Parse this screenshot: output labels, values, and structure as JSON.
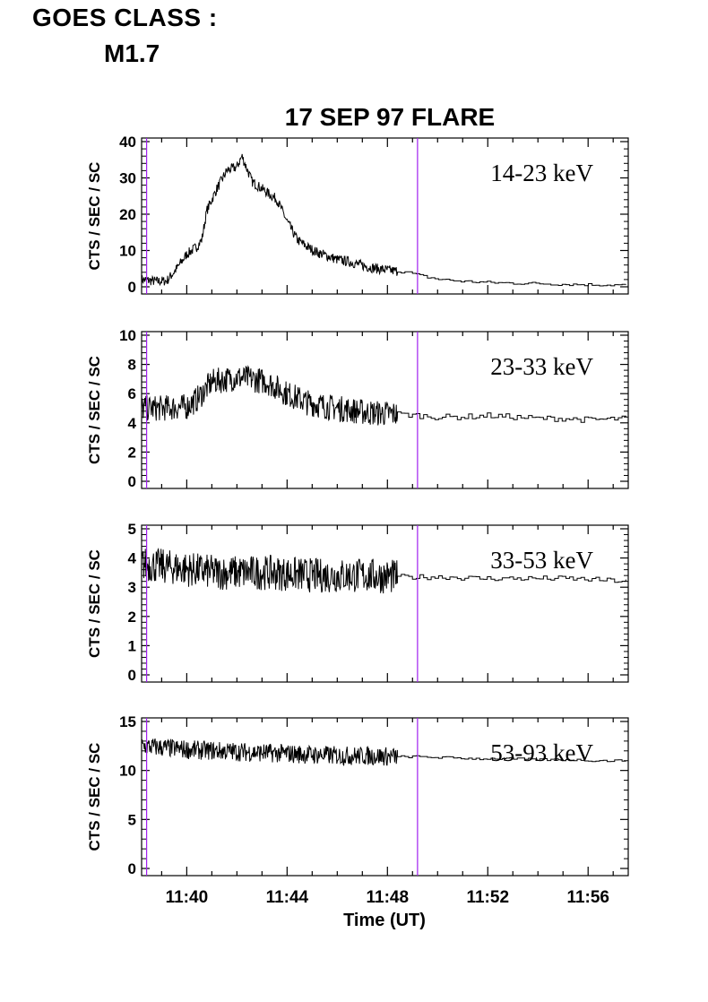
{
  "header": {
    "goes_line1": "GOES CLASS :",
    "goes_line2": "M1.7"
  },
  "colors": {
    "trace": "#000000",
    "marker": "#a020f0",
    "axes": "#000000"
  },
  "chart_data": {
    "type": "line",
    "title": "17 SEP 97 FLARE",
    "xlabel": "Time (UT)",
    "x_unit": "minutes",
    "xlim": [
      "11:38:12",
      "11:57:36"
    ],
    "x_ticks": [
      "11:40",
      "11:44",
      "11:48",
      "11:52",
      "11:56"
    ],
    "markers_x": [
      "11:38:24",
      "11:49:12"
    ],
    "fine_resolution_until": "11:48:24",
    "grid": false,
    "panels": [
      {
        "label": "14-23 keV",
        "ylabel": "CTS / SEC / SC",
        "ylim": [
          0,
          40
        ],
        "yticks": [
          "0",
          "10",
          "20",
          "30",
          "40"
        ],
        "series": [
          {
            "x": [
              "11:38:12",
              "11:38:48",
              "11:39:12",
              "11:39:36",
              "11:40:00",
              "11:40:24",
              "11:40:36",
              "11:40:48",
              "11:41:12",
              "11:41:36",
              "11:42:00",
              "11:42:12",
              "11:42:36",
              "11:43:00",
              "11:43:36",
              "11:44:00",
              "11:44:24",
              "11:44:48",
              "11:45:12",
              "11:45:36",
              "11:46:00",
              "11:46:24",
              "11:46:48",
              "11:47:12",
              "11:47:36",
              "11:48:00",
              "11:48:24",
              "11:48:48",
              "11:49:12",
              "11:50:00",
              "11:51:00",
              "11:52:00",
              "11:53:00",
              "11:54:00",
              "11:55:00",
              "11:56:00",
              "11:57:00",
              "11:57:36"
            ],
            "y": [
              2,
              1.5,
              1.6,
              5,
              9,
              11,
              13,
              21,
              27,
              32,
              33,
              36,
              29,
              27,
              24,
              18,
              13,
              11,
              9.5,
              8.5,
              7.5,
              7,
              6.3,
              5.5,
              5,
              4.6,
              4.3,
              4,
              3.2,
              2.1,
              1.5,
              1.2,
              1,
              0.9,
              0.7,
              0.6,
              0.5,
              0.5
            ]
          }
        ]
      },
      {
        "label": "23-33 keV",
        "ylabel": "CTS / SEC / SC",
        "ylim": [
          0,
          10
        ],
        "yticks": [
          "0",
          "2",
          "4",
          "6",
          "8",
          "10"
        ],
        "series": [
          {
            "x": [
              "11:38:12",
              "11:39:00",
              "11:40:00",
              "11:40:24",
              "11:41:00",
              "11:42:00",
              "11:42:36",
              "11:43:12",
              "11:44:00",
              "11:44:48",
              "11:45:36",
              "11:46:24",
              "11:47:12",
              "11:48:24",
              "11:49:12",
              "11:50:00",
              "11:51:00",
              "11:52:00",
              "11:53:00",
              "11:54:00",
              "11:55:00",
              "11:56:00",
              "11:57:36"
            ],
            "y": [
              5,
              5,
              5.1,
              5.6,
              6.8,
              7.1,
              7,
              6.8,
              6,
              5.4,
              5.1,
              4.9,
              4.7,
              4.6,
              4.5,
              4.4,
              4.4,
              4.5,
              4.4,
              4.3,
              4.3,
              4.2,
              4.3
            ]
          }
        ]
      },
      {
        "label": "33-53 keV",
        "ylabel": "CTS / SEC / SC",
        "ylim": [
          0,
          5
        ],
        "yticks": [
          "0",
          "1",
          "2",
          "3",
          "4",
          "5"
        ],
        "series": [
          {
            "x": [
              "11:38:12",
              "11:39:12",
              "11:40:12",
              "11:41:12",
              "11:42:12",
              "11:43:12",
              "11:44:12",
              "11:45:12",
              "11:46:12",
              "11:47:12",
              "11:48:24",
              "11:49:12",
              "11:50:24",
              "11:51:36",
              "11:52:48",
              "11:54:00",
              "11:55:12",
              "11:56:24",
              "11:57:36"
            ],
            "y": [
              3.8,
              3.7,
              3.6,
              3.5,
              3.5,
              3.5,
              3.45,
              3.4,
              3.4,
              3.4,
              3.35,
              3.35,
              3.35,
              3.3,
              3.3,
              3.3,
              3.3,
              3.25,
              3.2
            ]
          }
        ]
      },
      {
        "label": "53-93 keV",
        "ylabel": "CTS / SEC / SC",
        "ylim": [
          0,
          15
        ],
        "yticks": [
          "0",
          "5",
          "10",
          "15"
        ],
        "series": [
          {
            "x": [
              "11:38:12",
              "11:39:12",
              "11:40:12",
              "11:41:12",
              "11:42:12",
              "11:43:12",
              "11:44:12",
              "11:45:12",
              "11:46:12",
              "11:47:12",
              "11:48:24",
              "11:49:12",
              "11:50:24",
              "11:51:36",
              "11:52:48",
              "11:54:00",
              "11:55:12",
              "11:56:24",
              "11:57:36"
            ],
            "y": [
              12.5,
              12.3,
              12.1,
              12,
              11.9,
              11.8,
              11.7,
              11.6,
              11.5,
              11.5,
              11.4,
              11.4,
              11.3,
              11.2,
              11.2,
              11.1,
              11.1,
              11,
              11
            ]
          }
        ]
      }
    ]
  }
}
